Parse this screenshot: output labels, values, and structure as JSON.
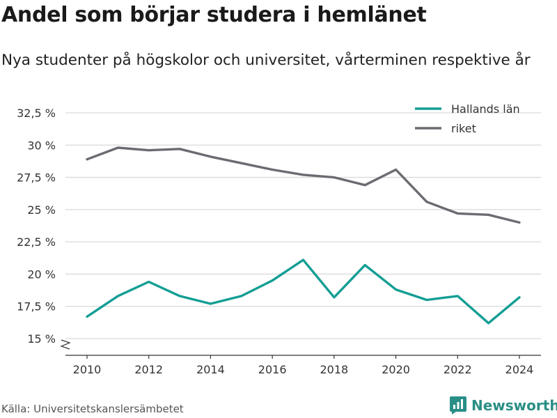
{
  "title": "Andel som börjar studera i hemlänet",
  "subtitle": "Nya studenter på högskolor och universitet, vårterminen respektive år",
  "source": "Källa: Universitetskanslersämbetet",
  "brand": {
    "name": "Newsworthy",
    "icon": "newsworthy-logo-icon",
    "color": "#2a8f86"
  },
  "chart_data": {
    "type": "line",
    "title": "",
    "xlabel": "",
    "ylabel": "",
    "x": [
      2010,
      2011,
      2012,
      2013,
      2014,
      2015,
      2016,
      2017,
      2018,
      2019,
      2020,
      2021,
      2022,
      2023,
      2024
    ],
    "x_ticks": [
      "2010",
      "2012",
      "2014",
      "2016",
      "2018",
      "2020",
      "2022",
      "2024"
    ],
    "y_ticks": [
      {
        "value": 15,
        "label": "15 %"
      },
      {
        "value": 17.5,
        "label": "17,5 %"
      },
      {
        "value": 20,
        "label": "20 %"
      },
      {
        "value": 22.5,
        "label": "22,5 %"
      },
      {
        "value": 25,
        "label": "25 %"
      },
      {
        "value": 27.5,
        "label": "27,5 %"
      },
      {
        "value": 30,
        "label": "30 %"
      },
      {
        "value": 32.5,
        "label": "32,5 %"
      }
    ],
    "ylim": [
      15,
      32.5
    ],
    "y_axis_break": true,
    "grid": true,
    "legend_position": "top-right",
    "series": [
      {
        "name": "Hallands län",
        "color": "#139e94",
        "values": [
          16.7,
          18.3,
          19.4,
          18.3,
          17.7,
          18.3,
          19.5,
          21.1,
          18.2,
          20.7,
          18.8,
          18.0,
          18.3,
          16.2,
          18.2
        ]
      },
      {
        "name": "riket",
        "color": "#6b6b72",
        "values": [
          28.9,
          29.8,
          29.6,
          29.7,
          29.1,
          28.6,
          28.1,
          27.7,
          27.5,
          26.9,
          28.1,
          25.6,
          24.7,
          24.6,
          24.0
        ]
      }
    ]
  }
}
